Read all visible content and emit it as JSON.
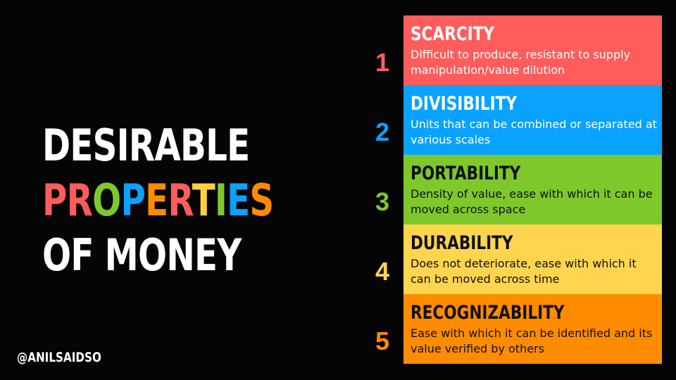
{
  "title": {
    "line1": "DESIRABLE",
    "line2_letters": [
      {
        "ch": "P",
        "color": "#ff5c5c"
      },
      {
        "ch": "R",
        "color": "#ff5c5c"
      },
      {
        "ch": "O",
        "color": "#7ec82c"
      },
      {
        "ch": "P",
        "color": "#0aa2ff"
      },
      {
        "ch": "E",
        "color": "#ff8c00"
      },
      {
        "ch": "R",
        "color": "#ff5c5c"
      },
      {
        "ch": "T",
        "color": "#ffd23d"
      },
      {
        "ch": "I",
        "color": "#7ec82c"
      },
      {
        "ch": "E",
        "color": "#0aa2ff"
      },
      {
        "ch": "S",
        "color": "#ff8c00"
      }
    ],
    "line3": "OF MONEY"
  },
  "handle": "@ANILSAIDSO",
  "properties": [
    {
      "number": "1",
      "name": "SCARCITY",
      "description": "Difficult to produce, resistant to supply manipulation/value dilution",
      "color": "#ff5c5c",
      "text_color": "#ffffff"
    },
    {
      "number": "2",
      "name": "DIVISIBILITY",
      "description": "Units that can be combined or separated at various scales",
      "color": "#0aa2ff",
      "text_color": "#ffffff"
    },
    {
      "number": "3",
      "name": "PORTABILITY",
      "description": "Density of value, ease with which it can be moved across space",
      "color": "#7ec82c",
      "text_color": "#111111"
    },
    {
      "number": "4",
      "name": "DURABILITY",
      "description": "Does not deteriorate, ease with which it can be moved across time",
      "color": "#ffd54f",
      "text_color": "#111111"
    },
    {
      "number": "5",
      "name": "RECOGNIZABILITY",
      "description": "Ease with which it can be identified and its value verified by others",
      "color": "#ff8c00",
      "text_color": "#111111"
    }
  ]
}
